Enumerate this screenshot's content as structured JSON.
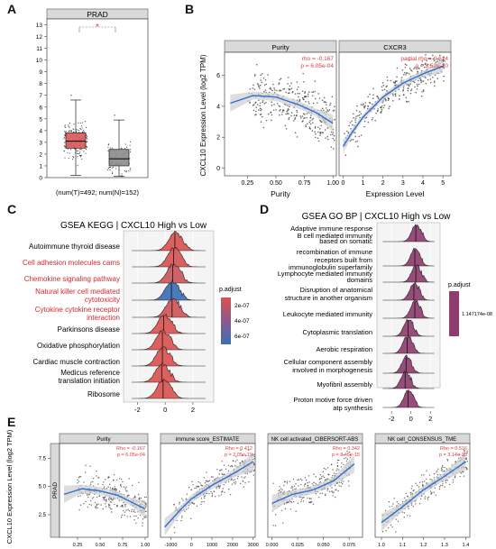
{
  "panel_letters": [
    "A",
    "B",
    "C",
    "D",
    "E"
  ],
  "colors": {
    "tumor": "#e05a5a",
    "normal": "#8c8c8c",
    "point": "#3a3a3a",
    "fit_line": "#2f6fd1",
    "ci_band": "#cfcfcf",
    "strip": "#d9d9d9",
    "stat_text": "#e23b3b",
    "highlight_text": "#d6262e",
    "ridge_low_padj": "#3b6fb6",
    "ridge_high_padj": "#d9534f",
    "go_ridge": "#8e3d6e"
  },
  "chart_data": [
    {
      "id": "A",
      "type": "box",
      "title": "PRAD",
      "categories": [
        "T",
        "N"
      ],
      "xlabel": "(num(T)=492; num(N)=152)",
      "ylabel": "",
      "yticks": [
        0,
        1,
        2,
        3,
        4,
        5,
        6,
        7,
        8,
        9,
        10,
        11,
        12,
        13
      ],
      "ylim": [
        0,
        13.5
      ],
      "significance": "*",
      "series": [
        {
          "category": "T",
          "n": 492,
          "min": 0.2,
          "q1": 2.5,
          "median": 3.1,
          "q3": 3.8,
          "max": 6.6,
          "color": "#e05a5a"
        },
        {
          "category": "N",
          "n": 152,
          "min": 0.1,
          "q1": 1.0,
          "median": 1.6,
          "q3": 2.4,
          "max": 4.9,
          "color": "#8c8c8c"
        }
      ]
    },
    {
      "id": "B",
      "type": "scatter",
      "ylabel": "CXCL10 Expression Level (log2 TPM)",
      "yticks": [
        0,
        2,
        4,
        6
      ],
      "ylim": [
        -0.5,
        7.5
      ],
      "facets": [
        {
          "strip": "Purity",
          "xlabel": "Purity",
          "xticks": [
            "0.25",
            "0.50",
            "0.75",
            "1.00"
          ],
          "xtick_values": [
            0.25,
            0.5,
            0.75,
            1.0
          ],
          "xlim": [
            0.05,
            1.03
          ],
          "stat_line1": "rho = -0.167",
          "stat_line2": "p = 6.05e-04",
          "fit": [
            [
              0.1,
              4.2
            ],
            [
              0.3,
              4.7
            ],
            [
              0.5,
              4.6
            ],
            [
              0.7,
              4.1
            ],
            [
              0.85,
              3.6
            ],
            [
              1.0,
              2.9
            ]
          ]
        },
        {
          "strip": "CXCR3",
          "xlabel": "Expression Level",
          "xticks": [
            "0",
            "1",
            "2",
            "3",
            "4",
            "5"
          ],
          "xtick_values": [
            0,
            1,
            2,
            3,
            4,
            5
          ],
          "xlim": [
            -0.2,
            5.4
          ],
          "stat_line1": "partial.rho = 0.624",
          "stat_line2": "p = 3.52e-10",
          "fit": [
            [
              0,
              1.4
            ],
            [
              0.5,
              2.4
            ],
            [
              1,
              3.3
            ],
            [
              2,
              4.6
            ],
            [
              3,
              5.5
            ],
            [
              4,
              6.1
            ],
            [
              5,
              6.6
            ]
          ]
        }
      ]
    },
    {
      "id": "C",
      "type": "ridge",
      "title": "GSEA KEGG | CXCL10 High vs Low",
      "xticks": [
        "-2",
        "0",
        "2"
      ],
      "xtick_values": [
        -2,
        0,
        2
      ],
      "xlim": [
        -3,
        3.5
      ],
      "legend_title": "p.adjust",
      "legend_ticks": [
        "2e-07",
        "4e-07",
        "6e-07"
      ],
      "terms": [
        {
          "label": "Autoimmune thyroid disease",
          "highlight": false,
          "peak": 0.7,
          "padj": 1.5e-07
        },
        {
          "label": "Cell adhesion molecules cams",
          "highlight": true,
          "peak": 0.6,
          "padj": 1.6e-07
        },
        {
          "label": "Chemokine signaling pathway",
          "highlight": true,
          "peak": 0.55,
          "padj": 2e-07
        },
        {
          "label": "Natural killer cell mediated cytotoxicity",
          "highlight": true,
          "peak": 0.45,
          "padj": 6e-07
        },
        {
          "label": "Cytokine cytokine receptor interaction",
          "highlight": true,
          "peak": 0.5,
          "padj": 1.8e-07
        },
        {
          "label": "Parkinsons disease",
          "highlight": false,
          "peak": -0.1,
          "padj": 1.5e-07
        },
        {
          "label": "Oxidative phosphorylation",
          "highlight": false,
          "peak": -0.2,
          "padj": 1.5e-07
        },
        {
          "label": "Cardiac muscle contraction",
          "highlight": false,
          "peak": -0.2,
          "padj": 1.5e-07
        },
        {
          "label": "Medicus reference translation initiation",
          "highlight": false,
          "peak": -0.25,
          "padj": 1.5e-07
        },
        {
          "label": "Ribosome",
          "highlight": false,
          "peak": -0.15,
          "padj": 1.5e-07
        }
      ]
    },
    {
      "id": "D",
      "type": "ridge",
      "title": "GSEA GO BP | CXCL10 High vs Low",
      "xticks": [
        "-2",
        "0",
        "2"
      ],
      "xtick_values": [
        -2,
        0,
        2
      ],
      "xlim": [
        -3.5,
        3
      ],
      "legend_title": "p.adjust",
      "legend_ticks": [
        "1.147174e-08"
      ],
      "terms": [
        {
          "label": "Adaptive immune response based on somatic",
          "peak": 0.5
        },
        {
          "label": "recombination of immune receptors built from",
          "peak": 0.4
        },
        {
          "label": "B cell mediated immunity / Lymphocyte mediated immunity",
          "peak": 0.5
        },
        {
          "label": "Disruption of anatomical structure in another organism",
          "peak": 0.3
        },
        {
          "label": "Leukocyte mediated immunity",
          "peak": 0.4
        },
        {
          "label": "Cytoplasmic translation",
          "peak": -0.3
        },
        {
          "label": "Aerobic respiration",
          "peak": -0.4
        },
        {
          "label": "Cellular component assembly involved in morphogenesis",
          "peak": -0.5
        },
        {
          "label": "Myofibril assembly",
          "peak": -0.6
        },
        {
          "label": "Proton motive force driven atp synthesis",
          "peak": -0.3
        }
      ]
    },
    {
      "id": "E",
      "type": "scatter",
      "ylabel": "CXCL10 Expression Level (log2 TPM)",
      "row_strip": "PRAD",
      "yticks": [
        "2.5",
        "5.0",
        "7.5"
      ],
      "ytick_values": [
        2.5,
        5.0,
        7.5
      ],
      "ylim": [
        0.5,
        8.8
      ],
      "facets": [
        {
          "strip": "Purity",
          "xticks": [
            "0.25",
            "0.50",
            "0.75",
            "1.00"
          ],
          "xtick_values": [
            0.25,
            0.5,
            0.75,
            1.0
          ],
          "xlim": [
            0.05,
            1.03
          ],
          "stat_line1": "Rho = -0.167",
          "stat_line2": "p = 6.05e-04",
          "fit": [
            [
              0.1,
              4.3
            ],
            [
              0.3,
              4.8
            ],
            [
              0.5,
              4.6
            ],
            [
              0.7,
              4.2
            ],
            [
              0.85,
              3.6
            ],
            [
              1.0,
              3.0
            ]
          ]
        },
        {
          "strip": "immune score_ESTIMATE",
          "xticks": [
            "-1000",
            "0",
            "1000",
            "2000",
            "3000"
          ],
          "xtick_values": [
            -1000,
            0,
            1000,
            2000,
            3000
          ],
          "xlim": [
            -1500,
            3100
          ],
          "stat_line1": "Rho = 0.412",
          "stat_line2": "p = 2.05e-19",
          "fit": [
            [
              -1300,
              1.4
            ],
            [
              -500,
              3.0
            ],
            [
              0,
              3.9
            ],
            [
              1000,
              5.1
            ],
            [
              2000,
              6.1
            ],
            [
              3000,
              7.2
            ]
          ]
        },
        {
          "strip": "NK cell activated_CIBERSORT-ABS",
          "xticks": [
            "0.000",
            "0.025",
            "0.050",
            "0.075"
          ],
          "xtick_values": [
            0,
            0.025,
            0.05,
            0.075
          ],
          "xlim": [
            -0.004,
            0.088
          ],
          "stat_line1": "Rho = 0.342",
          "stat_line2": "p = 8.45e-15",
          "fit": [
            [
              0,
              3.5
            ],
            [
              0.02,
              4.3
            ],
            [
              0.04,
              4.7
            ],
            [
              0.06,
              5.5
            ],
            [
              0.08,
              7.0
            ]
          ]
        },
        {
          "strip": "NK cell_CONSENSUS_TME",
          "xticks": [
            "1.0",
            "1.1",
            "1.2",
            "1.3",
            "1.4"
          ],
          "xtick_values": [
            1.0,
            1.1,
            1.2,
            1.3,
            1.4
          ],
          "xlim": [
            0.97,
            1.42
          ],
          "stat_line1": "Rho = 0.516",
          "stat_line2": "p = 3.14e-30",
          "fit": [
            [
              1.0,
              1.8
            ],
            [
              1.1,
              3.2
            ],
            [
              1.2,
              4.7
            ],
            [
              1.3,
              5.9
            ],
            [
              1.4,
              7.2
            ]
          ]
        }
      ]
    }
  ]
}
